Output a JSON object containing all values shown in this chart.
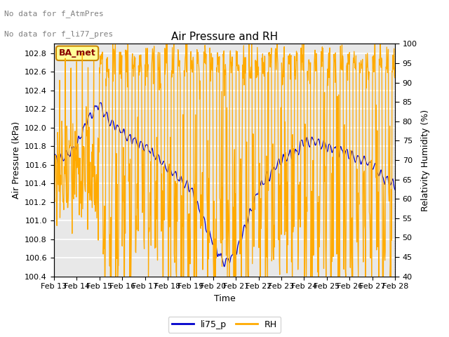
{
  "title": "Air Pressure and RH",
  "xlabel": "Time",
  "ylabel_left": "Air Pressure (kPa)",
  "ylabel_right": "Relativity Humidity (%)",
  "annotation_line1": "No data for f_AtmPres",
  "annotation_line2": "No data for f_li77_pres",
  "box_label": "BA_met",
  "legend_labels": [
    "li75_p",
    "RH"
  ],
  "left_color": "#0000cc",
  "right_color": "#ffaa00",
  "ylim_left": [
    100.4,
    102.9
  ],
  "ylim_right": [
    40,
    100
  ],
  "yticks_left": [
    100.4,
    100.6,
    100.8,
    101.0,
    101.2,
    101.4,
    101.6,
    101.8,
    102.0,
    102.2,
    102.4,
    102.6,
    102.8
  ],
  "yticks_right": [
    40,
    45,
    50,
    55,
    60,
    65,
    70,
    75,
    80,
    85,
    90,
    95,
    100
  ],
  "x_tick_labels": [
    "Feb 13",
    "Feb 14",
    "Feb 15",
    "Feb 16",
    "Feb 17",
    "Feb 18",
    "Feb 19",
    "Feb 20",
    "Feb 21",
    "Feb 22",
    "Feb 23",
    "Feb 24",
    "Feb 25",
    "Feb 26",
    "Feb 27",
    "Feb 28"
  ],
  "background_color": "#e8e8e8",
  "grid_color": "#ffffff",
  "annotation_color": "#808080",
  "box_bg": "#ffff99",
  "box_edge": "#cc8800",
  "box_text_color": "#880000",
  "title_fontsize": 11,
  "label_fontsize": 9,
  "tick_fontsize": 8,
  "annot_fontsize": 8
}
